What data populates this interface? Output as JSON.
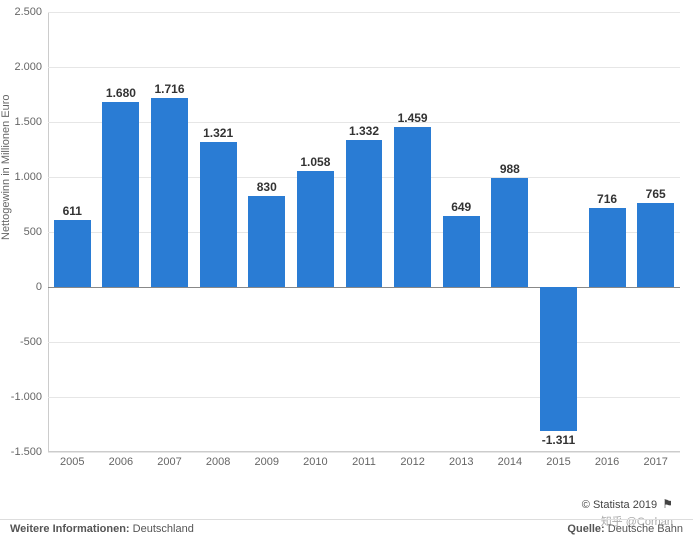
{
  "chart": {
    "type": "bar",
    "ylabel": "Nettogewinn in Millionen Euro",
    "label_fontsize": 11,
    "value_label_fontsize": 12,
    "categories": [
      "2005",
      "2006",
      "2007",
      "2008",
      "2009",
      "2010",
      "2011",
      "2012",
      "2013",
      "2014",
      "2015",
      "2016",
      "2017"
    ],
    "values": [
      611,
      1680,
      1716,
      1321,
      830,
      1058,
      1332,
      1459,
      649,
      988,
      -1311,
      716,
      765
    ],
    "value_labels": [
      "611",
      "1.680",
      "1.716",
      "1.321",
      "830",
      "1.058",
      "1.332",
      "1.459",
      "649",
      "988",
      "-1.311",
      "716",
      "765"
    ],
    "bar_color": "#2a7cd4",
    "ylim": [
      -1500,
      2500
    ],
    "ytick_step": 500,
    "yticks": [
      -1500,
      -1000,
      -500,
      0,
      500,
      1000,
      1500,
      2000,
      2500
    ],
    "ytick_labels": [
      "-1.500",
      "-1.000",
      "-500",
      "0",
      "500",
      "1.000",
      "1.500",
      "2.000",
      "2.500"
    ],
    "grid_color": "#e6e6e6",
    "zero_line_color": "#888888",
    "axis_color": "#cccccc",
    "background_color": "#ffffff",
    "text_color": "#666666",
    "bar_width": 0.76
  },
  "footer": {
    "credit": "© Statista 2019",
    "watermark": "知乎  @Corhan",
    "info_label": "Weitere Informationen:",
    "info_value": "Deutschland",
    "source_label": "Quelle:",
    "source_value": "Deutsche Bahn"
  }
}
